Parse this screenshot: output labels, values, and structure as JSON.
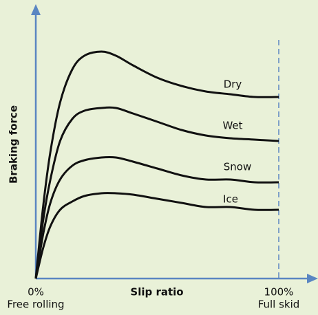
{
  "chart_data": {
    "type": "line",
    "xlabel": "Slip ratio",
    "ylabel": "Braking force",
    "x": [
      0,
      3,
      6,
      10,
      15,
      20,
      27,
      33,
      40,
      50,
      60,
      70,
      80,
      90,
      100
    ],
    "series": [
      {
        "name": "Dry",
        "color": "#111111",
        "values": [
          0,
          26,
          46,
          64,
          76,
          81,
          82.5,
          81,
          77.5,
          73,
          70,
          68,
          67,
          66,
          66
        ]
      },
      {
        "name": "Wet",
        "color": "#111111",
        "values": [
          0,
          21,
          36,
          50,
          58,
          61,
          62,
          62,
          60,
          57,
          54,
          52,
          51,
          50.5,
          50
        ]
      },
      {
        "name": "Snow",
        "color": "#111111",
        "values": [
          0,
          16,
          27.5,
          36,
          41,
          43,
          44,
          44,
          42.5,
          40,
          37.5,
          36,
          36,
          35,
          35
        ]
      },
      {
        "name": "Ice",
        "color": "#111111",
        "values": [
          0,
          11,
          19,
          25,
          28,
          30,
          31,
          31,
          30.5,
          29,
          27.5,
          26,
          26,
          25,
          25
        ]
      }
    ],
    "xlim": [
      0,
      100
    ],
    "ylim": [
      0,
      100
    ],
    "xticks": [
      {
        "value": 0,
        "label": "0%"
      },
      {
        "value": 100,
        "label": "100%"
      }
    ],
    "xtick_sublabels": [
      "Free rolling",
      "Full skid"
    ],
    "axis_color": "#5a86c2"
  }
}
